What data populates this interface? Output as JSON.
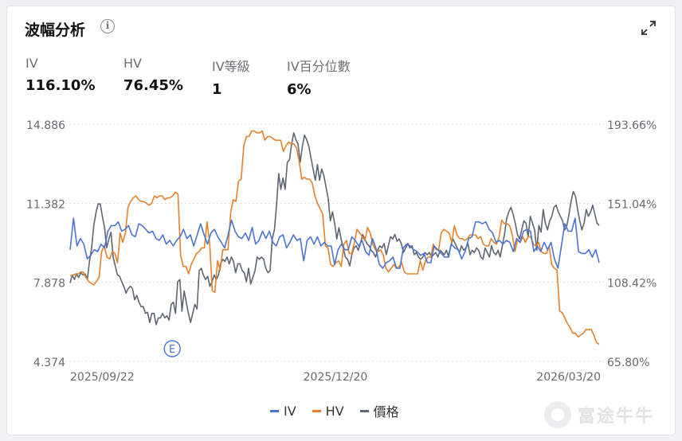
{
  "header": {
    "title": "波幅分析",
    "info_icon": "i",
    "expand_icon": "expand-icon"
  },
  "metrics": [
    {
      "label": "IV",
      "value": "116.10%"
    },
    {
      "label": "HV",
      "value": "76.45%"
    },
    {
      "label": "IV等級",
      "value": "1"
    },
    {
      "label": "IV百分位數",
      "value": "6%"
    }
  ],
  "colors": {
    "iv": "#4a74d6",
    "hv": "#e8802a",
    "price": "#5e6673",
    "grid": "#d9d9dd",
    "axis_text": "#6a6a70"
  },
  "chart_data": {
    "type": "line",
    "x_tick_labels": [
      "2025/09/22",
      "2025/12/20",
      "2026/03/20"
    ],
    "left_axis": {
      "ticks": [
        "14.886",
        "11.382",
        "7.878",
        "4.374"
      ],
      "range": [
        4.374,
        14.886
      ],
      "series": "價格"
    },
    "right_axis": {
      "ticks": [
        "193.66%",
        "151.04%",
        "108.42%",
        "65.80%"
      ],
      "range": [
        65.8,
        193.66
      ],
      "series": [
        "IV",
        "HV"
      ]
    },
    "grid": true,
    "legend_position": "bottom",
    "annotation": {
      "label": "E",
      "x_index": 46
    },
    "series": [
      {
        "name": "IV",
        "axis": "right",
        "values": [
          126,
          143,
          128,
          132,
          129,
          121,
          123,
          126,
          125,
          129,
          127,
          136,
          139,
          139,
          141,
          136,
          137,
          139,
          134,
          133,
          140,
          139,
          137,
          135,
          136,
          132,
          131,
          134,
          129,
          131,
          128,
          131,
          133,
          137,
          132,
          134,
          128,
          134,
          140,
          134,
          129,
          135,
          137,
          133,
          130,
          127,
          134,
          142,
          136,
          133,
          132,
          135,
          131,
          138,
          129,
          131,
          136,
          132,
          136,
          130,
          128,
          133,
          134,
          127,
          130,
          134,
          131,
          132,
          120,
          131,
          133,
          129,
          133,
          128,
          130,
          128,
          128,
          118,
          126,
          129,
          126,
          126,
          133,
          131,
          128,
          131,
          125,
          123,
          132,
          127,
          118,
          116,
          119,
          120,
          122,
          116,
          116,
          127,
          129,
          128,
          126,
          125,
          123,
          124,
          119,
          119,
          128,
          126,
          124,
          122,
          122,
          129,
          127,
          126,
          121,
          125,
          132,
          133,
          141,
          141,
          140,
          141,
          137,
          135,
          130,
          131,
          129,
          131,
          130,
          125,
          132,
          130,
          136,
          137,
          136,
          125,
          128,
          125,
          130,
          126,
          130,
          121,
          116,
          128,
          140,
          136,
          136,
          143,
          125,
          124,
          124,
          126,
          122,
          126,
          119
        ]
      },
      {
        "name": "HV",
        "axis": "right",
        "values": [
          112,
          112,
          113,
          113,
          114,
          114,
          111,
          109,
          108,
          107,
          109,
          111,
          125,
          128,
          122,
          121,
          125,
          124,
          119,
          135,
          130,
          135,
          149,
          152,
          154,
          155,
          153,
          152,
          152,
          151,
          150,
          151,
          155,
          154,
          155,
          155,
          153,
          154,
          154,
          155,
          157,
          156,
          123,
          117,
          117,
          113,
          118,
          121,
          124,
          125,
          127,
          127,
          141,
          130,
          104,
          103,
          120,
          115,
          126,
          126,
          126,
          146,
          153,
          152,
          163,
          164,
          182,
          187,
          187,
          190,
          190,
          189,
          189,
          190,
          185,
          187,
          187,
          186,
          185,
          185,
          185,
          179,
          182,
          184,
          183,
          183,
          181,
          174,
          164,
          165,
          164,
          164,
          162,
          155,
          151,
          148,
          145,
          128,
          127,
          118,
          117,
          119,
          120,
          117,
          129,
          131,
          124,
          124,
          130,
          137,
          135,
          133,
          131,
          138,
          135,
          129,
          126,
          125,
          126,
          123,
          116,
          114,
          116,
          118,
          116,
          117,
          119,
          114,
          113,
          113,
          113,
          113,
          113,
          120,
          115,
          120,
          122,
          122,
          129,
          126,
          126,
          135,
          137,
          136,
          135,
          130,
          139,
          134,
          132,
          132,
          131,
          132,
          134,
          134,
          134,
          132,
          133,
          129,
          128,
          128,
          132,
          130,
          129,
          133,
          142,
          140,
          140,
          139,
          134,
          125,
          131,
          130,
          133,
          130,
          133,
          133,
          129,
          128,
          130,
          125,
          124,
          124,
          128,
          118,
          116,
          115,
          93,
          92,
          89,
          86,
          84,
          81,
          81,
          79,
          80,
          81,
          83,
          83,
          83,
          80,
          76,
          75
        ]
      },
      {
        "name": "價格",
        "axis": "left",
        "values": [
          7.85,
          8.2,
          8.0,
          8.25,
          8.1,
          8.3,
          8.2,
          8.25,
          8.0,
          8.8,
          9.4,
          10.4,
          10.95,
          11.35,
          11.35,
          10.8,
          10.3,
          9.4,
          9.8,
          10.1,
          9.0,
          8.6,
          8.2,
          8.15,
          7.9,
          7.7,
          7.4,
          7.6,
          7.7,
          7.6,
          7.1,
          7.3,
          7.0,
          6.8,
          6.8,
          6.5,
          6.55,
          6.1,
          6.5,
          6.5,
          6.0,
          6.3,
          6.3,
          6.5,
          6.3,
          6.4,
          6.2,
          6.9,
          7.0,
          6.5,
          7.9,
          8.0,
          6.6,
          7.5,
          7.0,
          6.5,
          6.1,
          6.5,
          6.9,
          6.7,
          8.4,
          8.5,
          8.2,
          8.0,
          8.15,
          7.7,
          7.9,
          8.2,
          8.0,
          8.2,
          8.7,
          8.9,
          8.8,
          9.0,
          8.7,
          9.0,
          8.8,
          8.3,
          8.7,
          8.7,
          8.4,
          8.3,
          7.9,
          8.5,
          7.8,
          8.1,
          8.4,
          9.0,
          8.9,
          9.0,
          8.9,
          8.5,
          8.3,
          8.4,
          9.8,
          10.2,
          11.3,
          12.7,
          12.0,
          12.5,
          12.0,
          13.2,
          13.3,
          14.0,
          14.5,
          14.2,
          14.0,
          13.2,
          13.9,
          14.4,
          14.2,
          13.9,
          13.4,
          12.9,
          12.4,
          13.1,
          12.4,
          12.9,
          12.6,
          12.1,
          11.6,
          10.6,
          11.0,
          10.5,
          9.8,
          10.3,
          9.8,
          9.4,
          9.0,
          8.9,
          8.6,
          9.1,
          9.4,
          9.5,
          9.3,
          9.6,
          10.0,
          9.8,
          9.6,
          9.5,
          9.3,
          9.2,
          9.0,
          9.3,
          9.5,
          9.4,
          9.6,
          9.1,
          9.5,
          9.9,
          9.8,
          10.0,
          9.7,
          9.8,
          9.6,
          9.2,
          9.4,
          9.6,
          9.4,
          9.5,
          9.1,
          9.2,
          9.0,
          8.9,
          9.0,
          9.2,
          9.1,
          9.2,
          9.0,
          9.1,
          9.2,
          9.0,
          9.3,
          9.2,
          9.1,
          9.3,
          9.0,
          9.5,
          9.8,
          9.6,
          9.4,
          9.2,
          9.5,
          9.3,
          9.4,
          9.6,
          9.1,
          9.3,
          9.2,
          9.4,
          9.3,
          9.0,
          8.9,
          9.4,
          9.2,
          9.0,
          9.5,
          9.2,
          9.1,
          9.3,
          9.0,
          9.5,
          10.0,
          10.7,
          11.0,
          11.2,
          10.9,
          10.5,
          10.0,
          9.8,
          10.2,
          10.6,
          10.5,
          9.9,
          10.8,
          10.5,
          10.2,
          9.3,
          10.4,
          10.1,
          11.1,
          10.5,
          10.2,
          10.6,
          10.8,
          11.2,
          11.3,
          11.0,
          10.8,
          10.6,
          10.2,
          10.4,
          10.9,
          11.5,
          11.9,
          11.7,
          11.1,
          10.6,
          10.2,
          10.5,
          11.1,
          10.8,
          11.0,
          11.3,
          10.9,
          10.5,
          10.4
        ]
      }
    ]
  },
  "legend": [
    {
      "key": "iv",
      "label": "IV"
    },
    {
      "key": "hv",
      "label": "HV"
    },
    {
      "key": "price",
      "label": "價格"
    }
  ],
  "watermark": "富途牛牛"
}
